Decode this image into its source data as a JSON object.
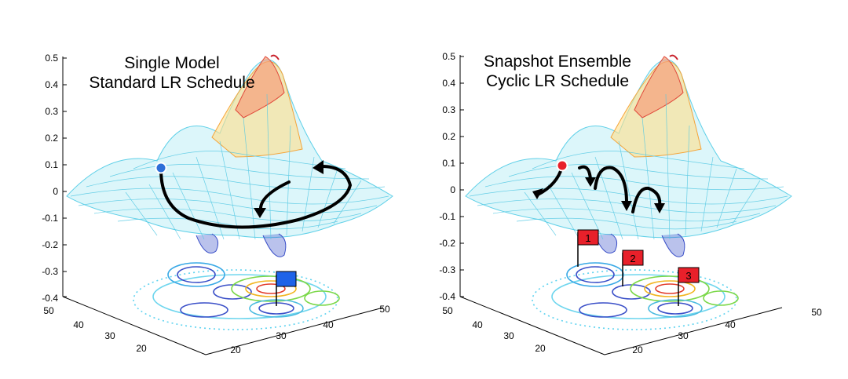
{
  "panels": [
    {
      "title_line1": "Single Model",
      "title_line2": "Standard LR Schedule",
      "z_ticks": [
        "0.5",
        "0.4",
        "0.3",
        "0.2",
        "0.1",
        "0",
        "-0.1",
        "-0.2",
        "-0.3",
        "-0.4"
      ],
      "y_ticks": [
        "50",
        "40",
        "30",
        "20"
      ],
      "x_ticks": [
        "20",
        "30",
        "40",
        "50"
      ],
      "start_point_color": "#2e6fd8",
      "flags": [
        {
          "label": "",
          "color": "#1f63e8"
        }
      ]
    },
    {
      "title_line1": "Snapshot Ensemble",
      "title_line2": "Cyclic LR Schedule",
      "z_ticks": [
        "0.5",
        "0.4",
        "0.3",
        "0.2",
        "0.1",
        "0",
        "-0.1",
        "-0.2",
        "-0.3",
        "-0.4"
      ],
      "y_ticks": [
        "50",
        "40",
        "30",
        "20"
      ],
      "x_ticks": [
        "20",
        "30",
        "40",
        "50"
      ],
      "start_point_color": "#e8202a",
      "flags": [
        {
          "label": "1",
          "color": "#e8202a"
        },
        {
          "label": "2",
          "color": "#e8202a"
        },
        {
          "label": "3",
          "color": "#e8202a"
        }
      ]
    }
  ]
}
